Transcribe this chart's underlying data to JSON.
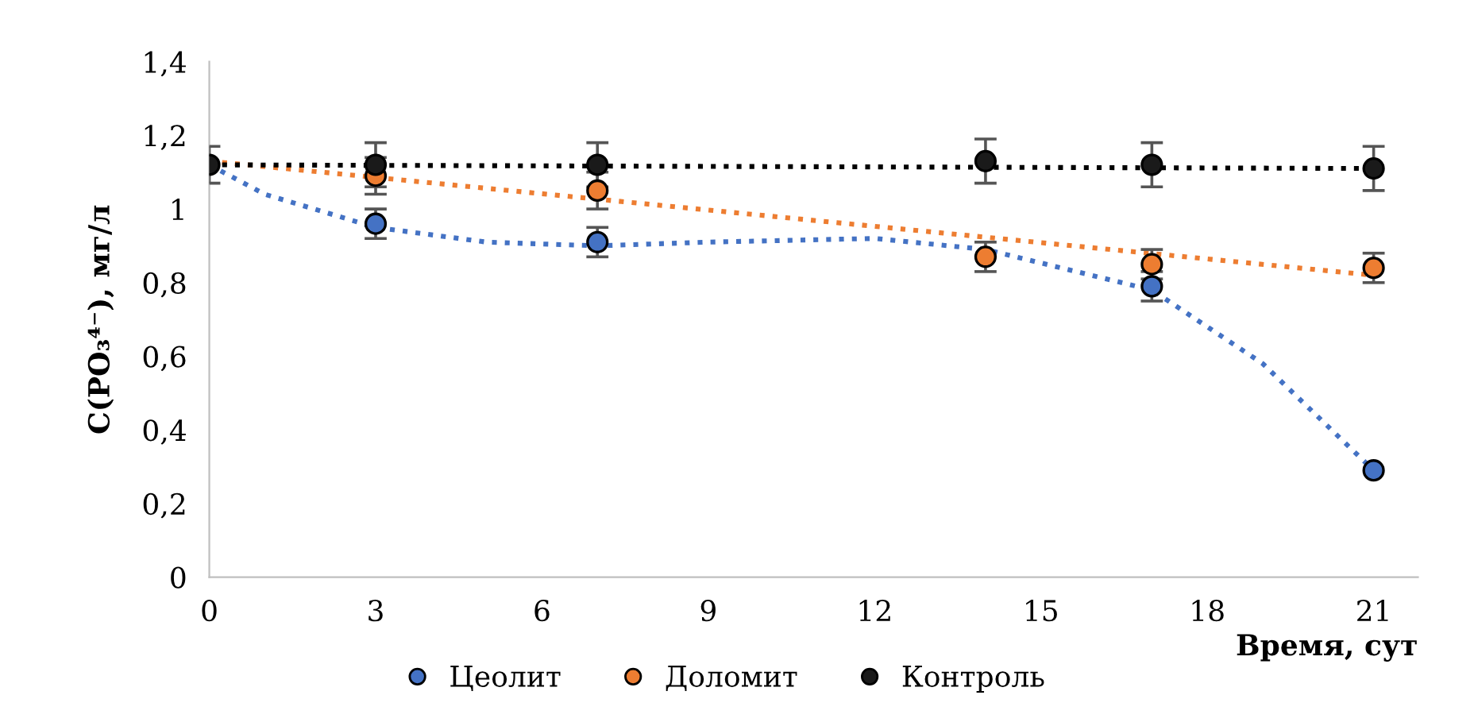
{
  "chart_data": {
    "type": "scatter",
    "xlabel": "Время, сут",
    "ylabel": "C(PO₃⁴⁻), мг/л",
    "xlim": [
      0,
      21.8
    ],
    "xticks": [
      0,
      3,
      6,
      9,
      12,
      15,
      18,
      21
    ],
    "ylim": [
      0,
      1.4
    ],
    "yticks": [
      0,
      {
        "value": 0.2,
        "label": "0,2"
      },
      {
        "value": 0.4,
        "label": "0,4"
      },
      {
        "value": 0.6,
        "label": "0,6"
      },
      {
        "value": 0.8,
        "label": "0,8"
      },
      1,
      {
        "value": 1.2,
        "label": "1,2"
      },
      {
        "value": 1.4,
        "label": "1,4"
      }
    ],
    "grid": false,
    "legend": "bottom",
    "marker": "circle",
    "series": [
      {
        "type": "line",
        "line_style": "dotted",
        "marker": "none",
        "color": "#4472c4",
        "x": [
          0,
          1,
          3,
          5,
          7,
          9,
          12,
          14,
          17,
          19,
          21
        ],
        "values": [
          1.12,
          1.04,
          0.95,
          0.91,
          0.9,
          0.91,
          0.92,
          0.89,
          0.78,
          0.58,
          0.29
        ]
      },
      {
        "type": "line",
        "line_style": "dotted",
        "marker": "none",
        "color": "#ed7d31",
        "x": [
          0,
          21
        ],
        "values": [
          1.13,
          0.82
        ]
      },
      {
        "type": "line",
        "line_style": "dotted",
        "marker": "none",
        "color": "#000000",
        "x": [
          0,
          21
        ],
        "values": [
          1.12,
          1.11
        ]
      },
      {
        "name": "Цеолит",
        "color": "#4472c4",
        "x": [
          3,
          7,
          14,
          17,
          21
        ],
        "values": [
          0.96,
          0.91,
          null,
          0.79,
          0.29
        ],
        "errors": [
          0.04,
          0.04,
          null,
          0.04,
          null
        ]
      },
      {
        "name": "Доломит",
        "color": "#ed7d31",
        "x": [
          3,
          7,
          14,
          17,
          21
        ],
        "values": [
          1.09,
          1.05,
          0.87,
          0.85,
          0.84
        ],
        "errors": [
          0.05,
          0.05,
          0.04,
          0.04,
          0.04
        ]
      },
      {
        "name": "Контроль",
        "color": "#1a1a1a",
        "x": [
          0,
          3,
          7,
          14,
          17,
          21
        ],
        "values": [
          1.12,
          1.12,
          1.12,
          1.13,
          1.12,
          1.11
        ],
        "errors": [
          0.05,
          0.06,
          0.06,
          0.06,
          0.06,
          0.06
        ]
      }
    ]
  }
}
